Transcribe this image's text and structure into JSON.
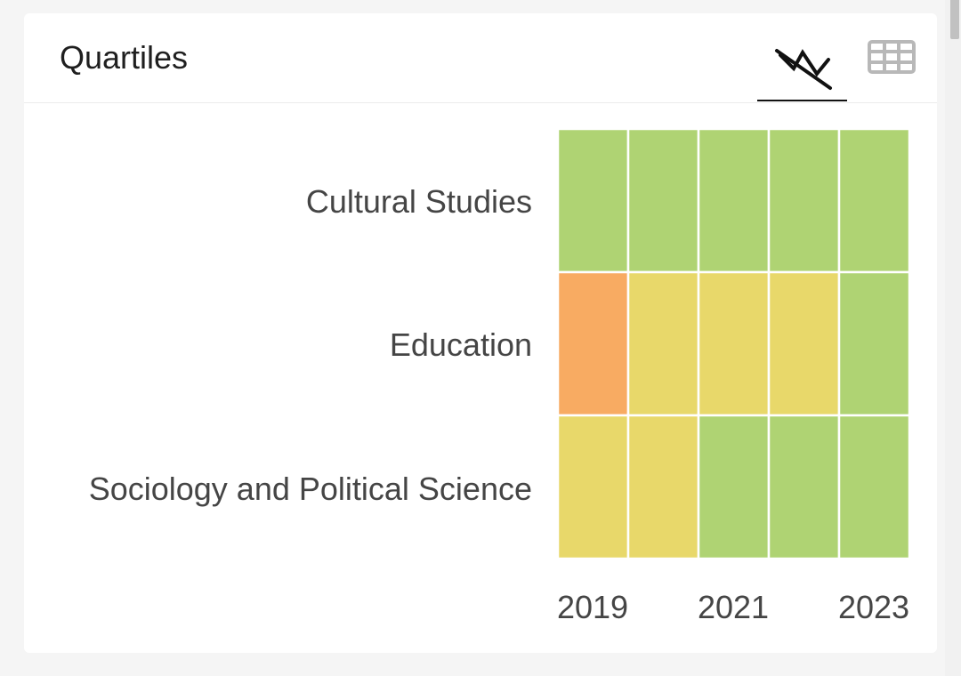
{
  "header": {
    "title": "Quartiles",
    "tabs": [
      {
        "name": "chart-view",
        "icon": "trend-chart-icon",
        "active": true
      },
      {
        "name": "table-view",
        "icon": "table-grid-icon",
        "active": false
      }
    ]
  },
  "colors": {
    "Q1": "#afd373",
    "Q2": "#e8d86a",
    "Q3": "#f8ab62",
    "Q4": "#dd5a4e",
    "cell_border": "#ffffff",
    "active_tab": "#111111",
    "inactive_icon": "#b8b8b8"
  },
  "chart_data": {
    "type": "heatmap",
    "title": "Quartiles",
    "categories": [
      "Cultural Studies",
      "Education",
      "Sociology and Political Science"
    ],
    "years": [
      2019,
      2020,
      2021,
      2022,
      2023
    ],
    "x_tick_labels": [
      "2019",
      "2021",
      "2023"
    ],
    "quartiles": [
      [
        "Q1",
        "Q1",
        "Q1",
        "Q1",
        "Q1"
      ],
      [
        "Q3",
        "Q2",
        "Q2",
        "Q2",
        "Q1"
      ],
      [
        "Q2",
        "Q2",
        "Q1",
        "Q1",
        "Q1"
      ]
    ]
  }
}
